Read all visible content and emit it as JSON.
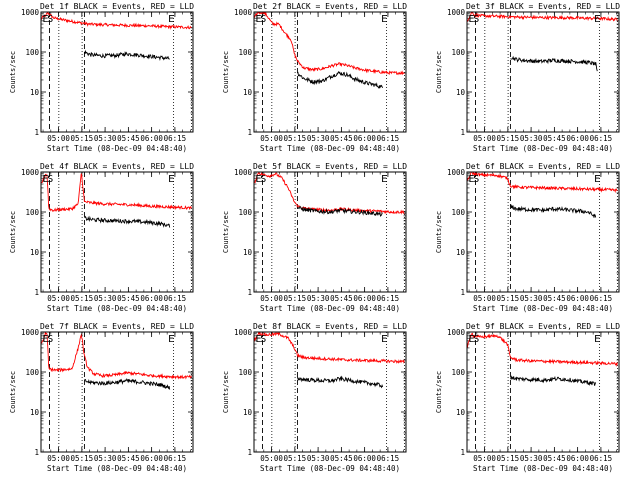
{
  "chart_data": {
    "type": "line",
    "yscale": "log",
    "ylabel": "Counts/sec",
    "xlabel": "Start Time (08-Dec-09 04:48:40)",
    "yticks": [
      1,
      10,
      100,
      1000
    ],
    "ytick_labels": [
      "1",
      "10",
      "100",
      "1000"
    ],
    "xlim_minutes": [
      0,
      98
    ],
    "xticks": [
      "05:00",
      "05:15",
      "05:30",
      "05:45",
      "06:00",
      "06:15"
    ],
    "xtick_minutes": [
      11.33,
      26.33,
      41.33,
      56.33,
      71.33,
      86.33
    ],
    "series_colors": {
      "events": "#000000",
      "lld": "#ff0000"
    },
    "panels": [
      {
        "title": "Det 1f BLACK = Events, RED = LLD",
        "markers": {
          "E": 1,
          "S": 4,
          "E2": 82
        },
        "dashed_lines": [
          5.5,
          28
        ],
        "dotted_lines": [
          11.5,
          26.5,
          85.5,
          97
        ],
        "lld": [
          [
            0,
            660
          ],
          [
            2,
            800
          ],
          [
            3,
            750
          ],
          [
            4,
            1000
          ],
          [
            5,
            900
          ],
          [
            8,
            720
          ],
          [
            12,
            660
          ],
          [
            18,
            600
          ],
          [
            25,
            540
          ],
          [
            28,
            520
          ],
          [
            30,
            500
          ],
          [
            40,
            480
          ],
          [
            50,
            470
          ],
          [
            60,
            460
          ],
          [
            70,
            450
          ],
          [
            80,
            430
          ],
          [
            90,
            420
          ],
          [
            97,
            410
          ]
        ],
        "events": [
          [
            28,
            100
          ],
          [
            32,
            85
          ],
          [
            40,
            80
          ],
          [
            48,
            82
          ],
          [
            55,
            90
          ],
          [
            62,
            85
          ],
          [
            70,
            78
          ],
          [
            78,
            72
          ],
          [
            83,
            68
          ]
        ]
      },
      {
        "title": "Det 2f BLACK = Events, RED = LLD",
        "markers": {
          "E": 1,
          "S": 4,
          "E2": 82
        },
        "dashed_lines": [
          5.5,
          28
        ],
        "dotted_lines": [
          11.5,
          26.5,
          85.5,
          97
        ],
        "lld": [
          [
            0,
            700
          ],
          [
            2,
            900
          ],
          [
            3,
            1000
          ],
          [
            4,
            950
          ],
          [
            6,
            1000
          ],
          [
            8,
            850
          ],
          [
            12,
            500
          ],
          [
            16,
            500
          ],
          [
            20,
            300
          ],
          [
            24,
            200
          ],
          [
            26,
            90
          ],
          [
            28,
            60
          ],
          [
            32,
            40
          ],
          [
            38,
            36
          ],
          [
            44,
            38
          ],
          [
            50,
            45
          ],
          [
            55,
            50
          ],
          [
            60,
            46
          ],
          [
            65,
            40
          ],
          [
            72,
            35
          ],
          [
            80,
            32
          ],
          [
            88,
            30
          ],
          [
            97,
            30
          ]
        ],
        "events": [
          [
            28,
            30
          ],
          [
            32,
            22
          ],
          [
            38,
            18
          ],
          [
            44,
            19
          ],
          [
            50,
            25
          ],
          [
            55,
            30
          ],
          [
            60,
            27
          ],
          [
            65,
            21
          ],
          [
            72,
            17
          ],
          [
            78,
            15
          ],
          [
            83,
            13
          ]
        ]
      },
      {
        "title": "Det 3f BLACK = Events, RED = LLD",
        "markers": {
          "E": 1,
          "S": 4,
          "E2": 82
        },
        "dashed_lines": [
          5.5,
          28
        ],
        "dotted_lines": [
          11.5,
          26.5,
          85.5,
          97
        ],
        "lld": [
          [
            0,
            600
          ],
          [
            2,
            800
          ],
          [
            3,
            1000
          ],
          [
            4,
            900
          ],
          [
            6,
            820
          ],
          [
            10,
            800
          ],
          [
            20,
            780
          ],
          [
            28,
            760
          ],
          [
            35,
            740
          ],
          [
            45,
            730
          ],
          [
            55,
            720
          ],
          [
            65,
            720
          ],
          [
            75,
            700
          ],
          [
            85,
            690
          ],
          [
            97,
            650
          ]
        ],
        "events": [
          [
            28,
            75
          ],
          [
            32,
            65
          ],
          [
            40,
            60
          ],
          [
            48,
            58
          ],
          [
            55,
            62
          ],
          [
            62,
            60
          ],
          [
            70,
            58
          ],
          [
            78,
            55
          ],
          [
            83,
            50
          ],
          [
            84,
            30
          ]
        ]
      },
      {
        "title": "Det 4f BLACK = Events, RED = LLD",
        "markers": {
          "E": 1,
          "S": 4,
          "E2": 82
        },
        "dashed_lines": [
          5.5,
          28
        ],
        "dotted_lines": [
          11.5,
          26.5,
          85.5,
          97
        ],
        "lld": [
          [
            0,
            500
          ],
          [
            2,
            700
          ],
          [
            3,
            900
          ],
          [
            4,
            800
          ],
          [
            5,
            120
          ],
          [
            8,
            110
          ],
          [
            12,
            115
          ],
          [
            20,
            120
          ],
          [
            24,
            160
          ],
          [
            26,
            1000
          ],
          [
            28,
            180
          ],
          [
            32,
            170
          ],
          [
            40,
            160
          ],
          [
            50,
            155
          ],
          [
            60,
            150
          ],
          [
            70,
            140
          ],
          [
            80,
            135
          ],
          [
            90,
            130
          ],
          [
            97,
            125
          ]
        ],
        "events": [
          [
            28,
            70
          ],
          [
            32,
            65
          ],
          [
            40,
            62
          ],
          [
            50,
            60
          ],
          [
            60,
            58
          ],
          [
            70,
            55
          ],
          [
            78,
            50
          ],
          [
            83,
            45
          ]
        ]
      },
      {
        "title": "Det 5f BLACK = Events, RED = LLD",
        "markers": {
          "E": 1,
          "S": 4,
          "E2": 82
        },
        "dashed_lines": [
          5.5,
          28
        ],
        "dotted_lines": [
          11.5,
          26.5,
          85.5,
          97
        ],
        "lld": [
          [
            0,
            500
          ],
          [
            2,
            800
          ],
          [
            3,
            1000
          ],
          [
            4,
            900
          ],
          [
            6,
            850
          ],
          [
            10,
            800
          ],
          [
            14,
            900
          ],
          [
            18,
            700
          ],
          [
            22,
            400
          ],
          [
            26,
            180
          ],
          [
            28,
            140
          ],
          [
            32,
            125
          ],
          [
            40,
            115
          ],
          [
            50,
            110
          ],
          [
            55,
            120
          ],
          [
            60,
            115
          ],
          [
            70,
            108
          ],
          [
            80,
            105
          ],
          [
            90,
            100
          ],
          [
            97,
            100
          ]
        ],
        "events": [
          [
            28,
            130
          ],
          [
            32,
            115
          ],
          [
            40,
            105
          ],
          [
            50,
            100
          ],
          [
            55,
            110
          ],
          [
            60,
            105
          ],
          [
            70,
            98
          ],
          [
            78,
            92
          ],
          [
            83,
            85
          ]
        ]
      },
      {
        "title": "Det 6f BLACK = Events, RED = LLD",
        "markers": {
          "E": 1,
          "S": 4,
          "E2": 82
        },
        "dashed_lines": [
          5.5,
          28
        ],
        "dotted_lines": [
          11.5,
          26.5,
          85.5,
          97
        ],
        "lld": [
          [
            0,
            600
          ],
          [
            2,
            800
          ],
          [
            3,
            1000
          ],
          [
            4,
            900
          ],
          [
            8,
            850
          ],
          [
            20,
            820
          ],
          [
            26,
            700
          ],
          [
            28,
            450
          ],
          [
            32,
            420
          ],
          [
            40,
            410
          ],
          [
            50,
            400
          ],
          [
            60,
            390
          ],
          [
            70,
            380
          ],
          [
            80,
            370
          ],
          [
            90,
            360
          ],
          [
            97,
            350
          ]
        ],
        "events": [
          [
            28,
            135
          ],
          [
            32,
            120
          ],
          [
            40,
            115
          ],
          [
            50,
            110
          ],
          [
            55,
            120
          ],
          [
            62,
            115
          ],
          [
            70,
            108
          ],
          [
            78,
            100
          ],
          [
            83,
            75
          ]
        ]
      },
      {
        "title": "Det 7f BLACK = Events, RED = LLD",
        "markers": {
          "E": 1,
          "S": 4,
          "E2": 82
        },
        "dashed_lines": [
          5.5,
          28
        ],
        "dotted_lines": [
          11.5,
          26.5,
          85.5,
          97
        ],
        "lld": [
          [
            0,
            500
          ],
          [
            2,
            700
          ],
          [
            3,
            1000
          ],
          [
            4,
            800
          ],
          [
            5,
            120
          ],
          [
            10,
            110
          ],
          [
            20,
            120
          ],
          [
            24,
            400
          ],
          [
            26,
            900
          ],
          [
            28,
            250
          ],
          [
            30,
            130
          ],
          [
            34,
            90
          ],
          [
            40,
            80
          ],
          [
            48,
            85
          ],
          [
            55,
            95
          ],
          [
            62,
            90
          ],
          [
            70,
            82
          ],
          [
            80,
            78
          ],
          [
            90,
            75
          ],
          [
            97,
            75
          ]
        ],
        "events": [
          [
            28,
            60
          ],
          [
            32,
            55
          ],
          [
            40,
            52
          ],
          [
            48,
            55
          ],
          [
            55,
            60
          ],
          [
            62,
            57
          ],
          [
            70,
            52
          ],
          [
            78,
            47
          ],
          [
            83,
            40
          ]
        ]
      },
      {
        "title": "Det 8f BLACK = Events, RED = LLD",
        "markers": {
          "E": 1,
          "S": 4,
          "E2": 82
        },
        "dashed_lines": [
          5.5,
          28
        ],
        "dotted_lines": [
          11.5,
          26.5,
          85.5,
          97
        ],
        "lld": [
          [
            0,
            600
          ],
          [
            2,
            800
          ],
          [
            3,
            1000
          ],
          [
            4,
            900
          ],
          [
            8,
            850
          ],
          [
            16,
            900
          ],
          [
            22,
            700
          ],
          [
            26,
            400
          ],
          [
            28,
            260
          ],
          [
            32,
            230
          ],
          [
            40,
            220
          ],
          [
            50,
            210
          ],
          [
            60,
            200
          ],
          [
            70,
            195
          ],
          [
            80,
            190
          ],
          [
            90,
            185
          ],
          [
            97,
            180
          ]
        ],
        "events": [
          [
            28,
            70
          ],
          [
            32,
            65
          ],
          [
            40,
            62
          ],
          [
            50,
            60
          ],
          [
            55,
            68
          ],
          [
            62,
            62
          ],
          [
            70,
            55
          ],
          [
            78,
            50
          ],
          [
            83,
            45
          ]
        ]
      },
      {
        "title": "Det 9f BLACK = Events, RED = LLD",
        "markers": {
          "E": 1,
          "S": 4,
          "E2": 82
        },
        "dashed_lines": [
          5.5,
          28
        ],
        "dotted_lines": [
          11.5,
          26.5,
          85.5,
          97
        ],
        "lld": [
          [
            0,
            400
          ],
          [
            2,
            700
          ],
          [
            3,
            1000
          ],
          [
            4,
            800
          ],
          [
            8,
            750
          ],
          [
            20,
            800
          ],
          [
            26,
            500
          ],
          [
            28,
            230
          ],
          [
            32,
            200
          ],
          [
            40,
            190
          ],
          [
            50,
            185
          ],
          [
            60,
            180
          ],
          [
            70,
            175
          ],
          [
            80,
            170
          ],
          [
            90,
            165
          ],
          [
            97,
            160
          ]
        ],
        "events": [
          [
            28,
            75
          ],
          [
            32,
            68
          ],
          [
            40,
            65
          ],
          [
            50,
            63
          ],
          [
            58,
            68
          ],
          [
            65,
            65
          ],
          [
            72,
            58
          ],
          [
            78,
            55
          ],
          [
            83,
            50
          ]
        ]
      }
    ]
  }
}
